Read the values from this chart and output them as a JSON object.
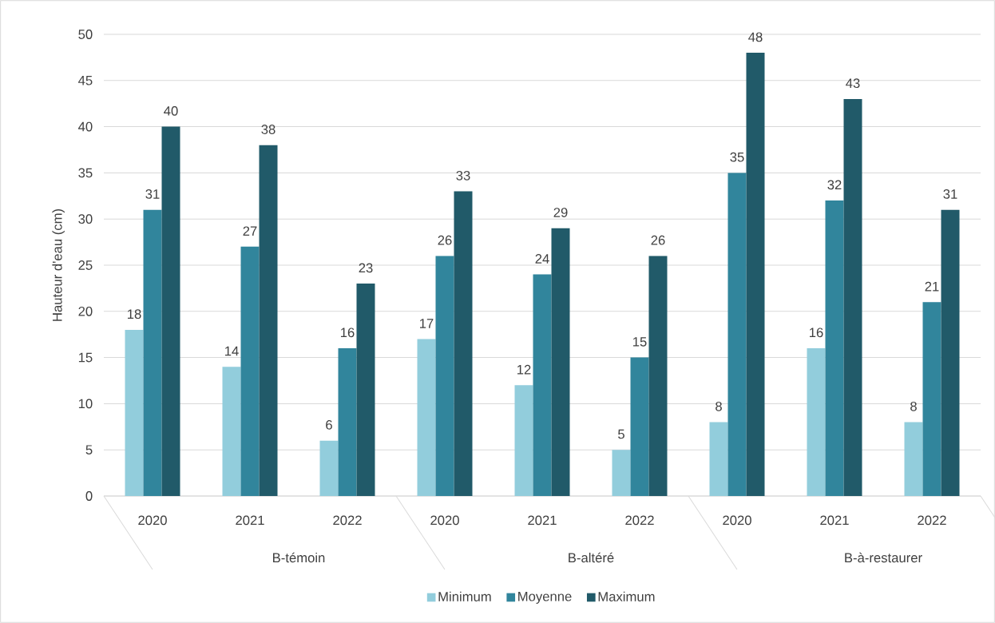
{
  "chart_data": {
    "type": "bar",
    "categories": [
      "2020",
      "2021",
      "2022",
      "2020",
      "2021",
      "2022",
      "2020",
      "2021",
      "2022"
    ],
    "series": [
      {
        "name": "Minimum",
        "color": "#92cddc",
        "values": [
          18,
          14,
          6,
          17,
          12,
          5,
          8,
          16,
          8
        ]
      },
      {
        "name": "Moyenne",
        "color": "#31859c",
        "values": [
          31,
          27,
          16,
          26,
          24,
          15,
          35,
          32,
          21
        ]
      },
      {
        "name": "Maximum",
        "color": "#215a69",
        "values": [
          40,
          38,
          23,
          33,
          29,
          26,
          48,
          43,
          31
        ]
      }
    ],
    "ylabel": "Hauteur d'eau (cm)",
    "ylim": [
      0,
      50
    ],
    "yticks": [
      0,
      5,
      10,
      15,
      20,
      25,
      30,
      35,
      40,
      45,
      50
    ],
    "grid": "y",
    "legend": "bottom",
    "data_labels": true,
    "annotations": [
      "B-témoin",
      "B-altéré",
      "B-à-restaurer"
    ]
  }
}
